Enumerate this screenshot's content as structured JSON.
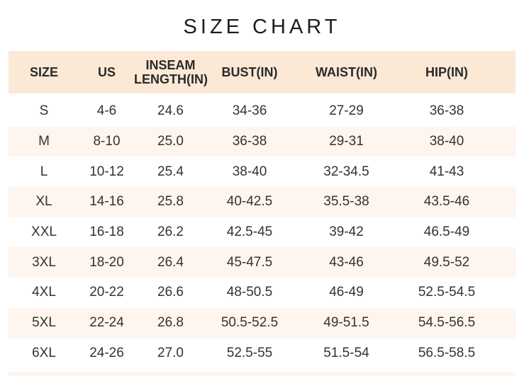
{
  "title": "SIZE CHART",
  "headers": [
    "SIZE",
    "US",
    "INSEAM\nLENGTH(IN)",
    "BUST(IN)",
    "WAIST(IN)",
    "HIP(IN)"
  ],
  "rows": [
    [
      "S",
      "4-6",
      "24.6",
      "34-36",
      "27-29",
      "36-38"
    ],
    [
      "M",
      "8-10",
      "25.0",
      "36-38",
      "29-31",
      "38-40"
    ],
    [
      "L",
      "10-12",
      "25.4",
      "38-40",
      "32-34.5",
      "41-43"
    ],
    [
      "XL",
      "14-16",
      "25.8",
      "40-42.5",
      "35.5-38",
      "43.5-46"
    ],
    [
      "XXL",
      "16-18",
      "26.2",
      "42.5-45",
      "39-42",
      "46.5-49"
    ],
    [
      "3XL",
      "18-20",
      "26.4",
      "45-47.5",
      "43-46",
      "49.5-52"
    ],
    [
      "4XL",
      "20-22",
      "26.6",
      "48-50.5",
      "46-49",
      "52.5-54.5"
    ],
    [
      "5XL",
      "22-24",
      "26.8",
      "50.5-52.5",
      "49-51.5",
      "54.5-56.5"
    ],
    [
      "6XL",
      "24-26",
      "27.0",
      "52.5-55",
      "51.5-54",
      "56.5-58.5"
    ]
  ],
  "colors": {
    "header_bg": "#fbe9d6",
    "stripe_bg": "#fdf5ee",
    "text": "#333333"
  }
}
